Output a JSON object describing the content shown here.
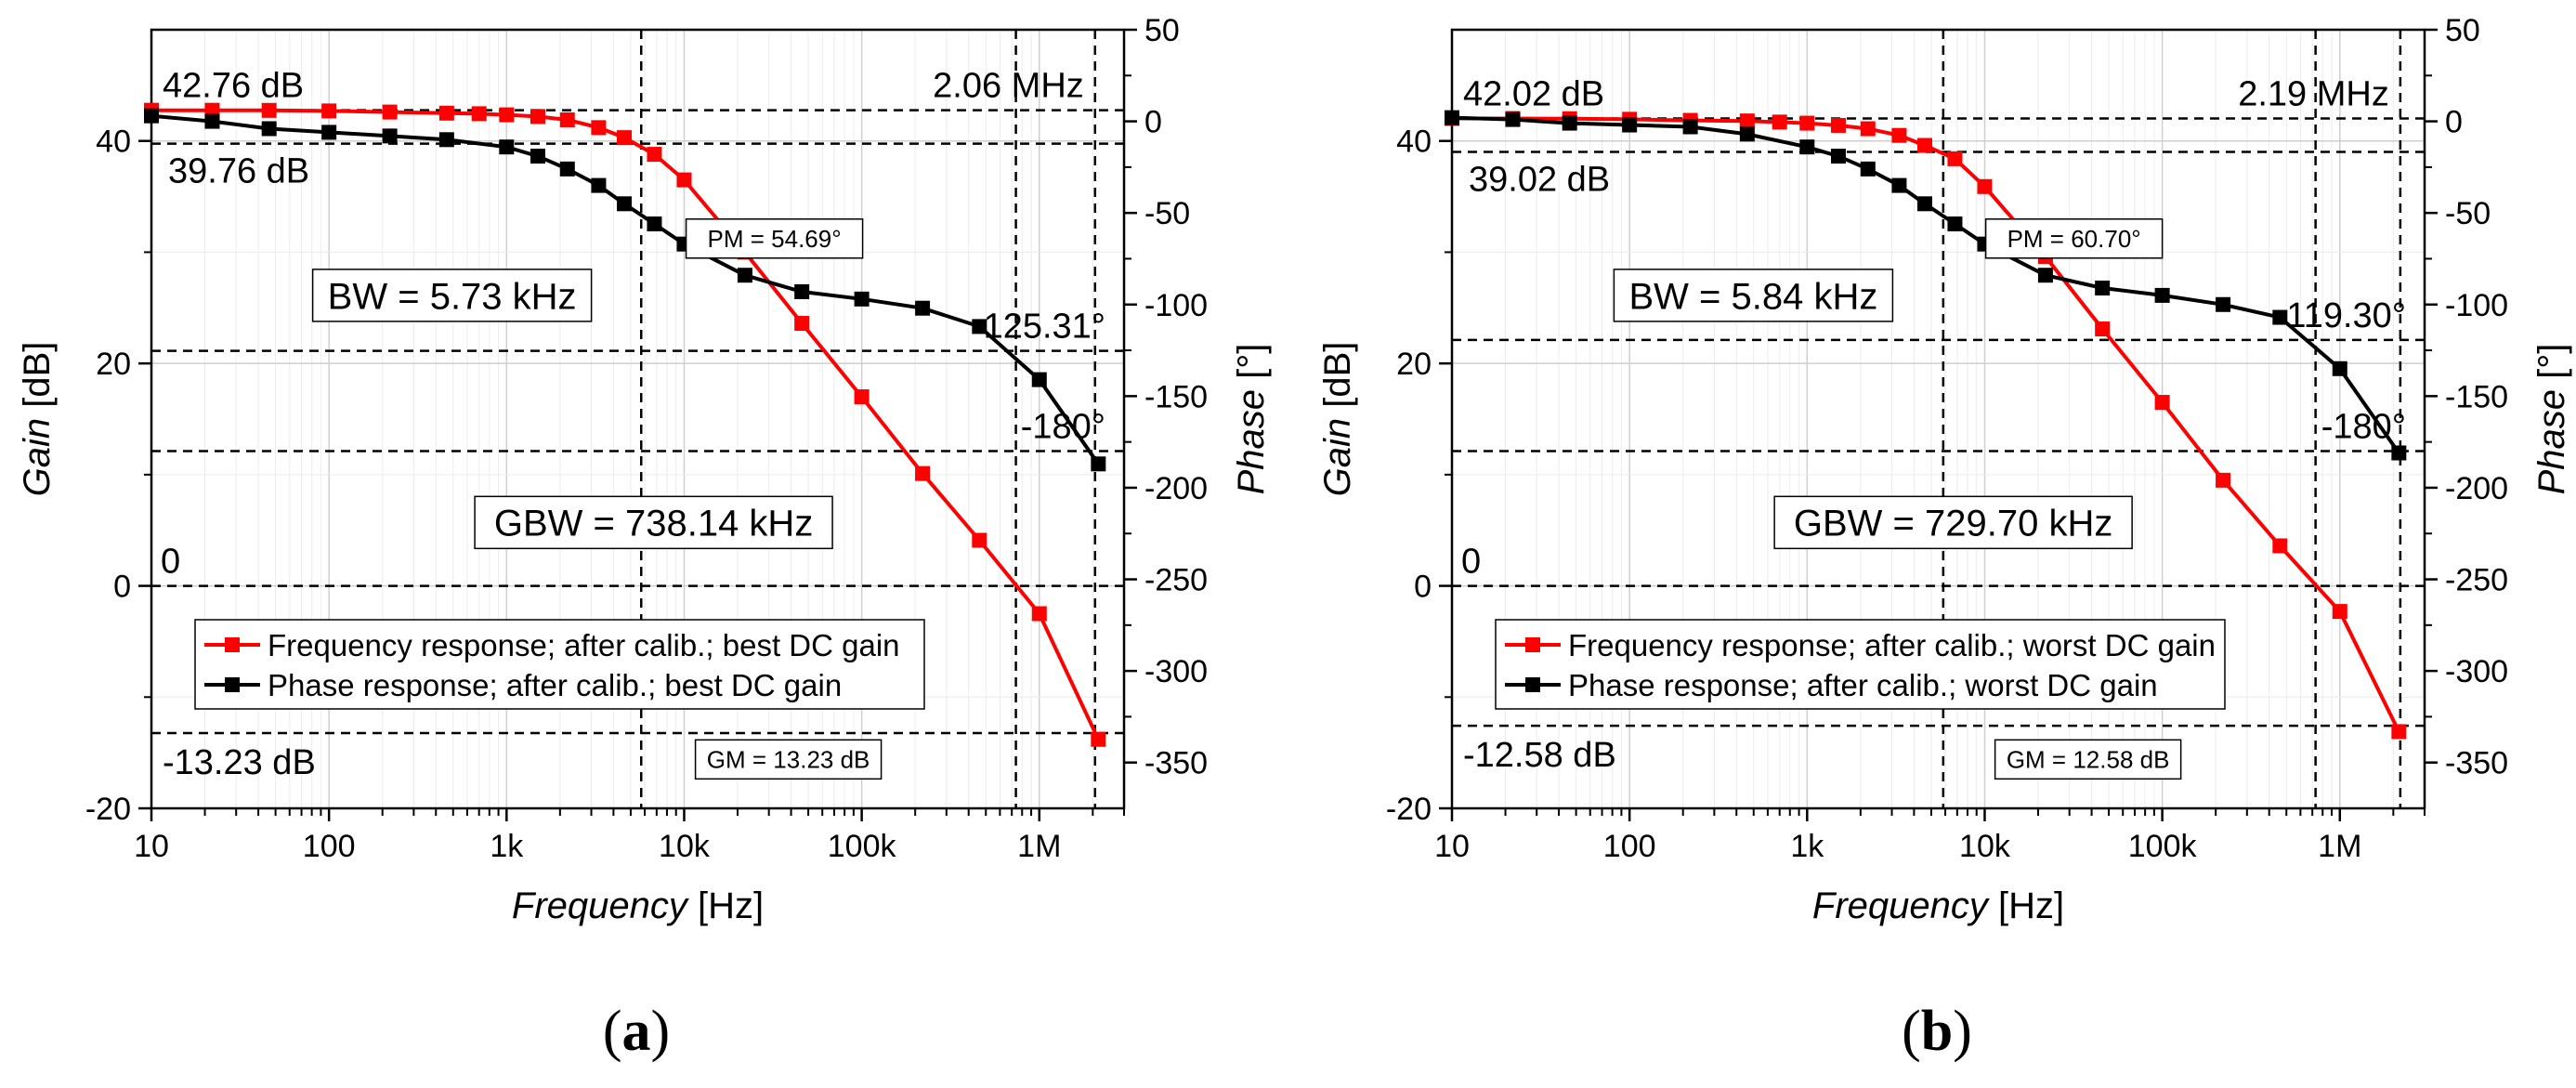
{
  "chart_data": [
    {
      "type": "line",
      "panel_label": "a",
      "xlabel_italic": "Frequency",
      "xlabel_unit": " [Hz]",
      "ylabel_italic": "Gain",
      "ylabel_unit": " [dB]",
      "y2label_italic": "Phase",
      "y2label_unit": " [°]",
      "x_scale": "log",
      "xlim": [
        10,
        3000000
      ],
      "ylim": [
        -20,
        50
      ],
      "y2lim": [
        -375,
        50
      ],
      "x_ticks": [
        {
          "v": 10,
          "label": "10"
        },
        {
          "v": 100,
          "label": "100"
        },
        {
          "v": 1000,
          "label": "1k"
        },
        {
          "v": 10000,
          "label": "10k"
        },
        {
          "v": 100000,
          "label": "100k"
        },
        {
          "v": 1000000,
          "label": "1M"
        }
      ],
      "y_ticks": [
        {
          "v": -20,
          "label": "-20"
        },
        {
          "v": 0,
          "label": "0"
        },
        {
          "v": 20,
          "label": "20"
        },
        {
          "v": 40,
          "label": "40"
        }
      ],
      "y2_ticks": [
        {
          "v": 50,
          "label": "50"
        },
        {
          "v": 0,
          "label": "0"
        },
        {
          "v": -50,
          "label": "-50"
        },
        {
          "v": -100,
          "label": "-100"
        },
        {
          "v": -150,
          "label": "-150"
        },
        {
          "v": -200,
          "label": "-200"
        },
        {
          "v": -250,
          "label": "-250"
        },
        {
          "v": -300,
          "label": "-300"
        },
        {
          "v": -350,
          "label": "-350"
        }
      ],
      "grid": true,
      "legend_placement": "lower-left",
      "series": [
        {
          "name": "Frequency response; after calib.; best DC gain",
          "axis": "left",
          "color": "#ff0000",
          "x": [
            10,
            22,
            46,
            100,
            220,
            460,
            700,
            1000,
            1500,
            2200,
            3300,
            4600,
            6800,
            10000,
            22000,
            46000,
            100000,
            220000,
            460000,
            1000000,
            2150000
          ],
          "y": [
            42.76,
            42.76,
            42.75,
            42.7,
            42.6,
            42.5,
            42.45,
            42.35,
            42.2,
            41.9,
            41.2,
            40.3,
            38.8,
            36.5,
            30.0,
            23.6,
            17.0,
            10.1,
            4.1,
            -2.5,
            -13.8
          ]
        },
        {
          "name": "Phase response; after calib.; best DC gain",
          "axis": "right",
          "color": "#000000",
          "x": [
            10,
            22,
            46,
            100,
            220,
            460,
            1000,
            1500,
            2200,
            3300,
            4600,
            6800,
            10000,
            22000,
            46000,
            100000,
            220000,
            460000,
            1000000,
            2150000
          ],
          "y": [
            3,
            0,
            -4,
            -6,
            -8,
            -10,
            -14,
            -19,
            -26,
            -35,
            -45,
            -56,
            -67,
            -84,
            -93,
            -97,
            -102,
            -112,
            -141,
            -187
          ]
        }
      ],
      "annotations": {
        "dc_gain": "42.76 dB",
        "dc_gain_minus3": "39.76 dB",
        "zero": "0",
        "gm_level": "-13.23 dB",
        "unity_freq": "2.06 MHz",
        "phase_at_unity": "-125.31°",
        "minus180": "-180°",
        "bw": "BW = 5.73 kHz",
        "gbw": "GBW = 738.14 kHz",
        "pm": "PM = 54.69°",
        "gm": "GM = 13.23 dB"
      },
      "markers": {
        "h_gain": [
          42.76,
          39.76,
          -13.23
        ],
        "h_phase": [
          -125.31,
          -180
        ],
        "v_freq": [
          5730,
          738140,
          2060000
        ],
        "zero_line": 0
      }
    },
    {
      "type": "line",
      "panel_label": "b",
      "xlabel_italic": "Frequency",
      "xlabel_unit": " [Hz]",
      "ylabel_italic": "Gain",
      "ylabel_unit": " [dB]",
      "y2label_italic": "Phase",
      "y2label_unit": " [°]",
      "x_scale": "log",
      "xlim": [
        10,
        3000000
      ],
      "ylim": [
        -20,
        50
      ],
      "y2lim": [
        -375,
        50
      ],
      "x_ticks": [
        {
          "v": 10,
          "label": "10"
        },
        {
          "v": 100,
          "label": "100"
        },
        {
          "v": 1000,
          "label": "1k"
        },
        {
          "v": 10000,
          "label": "10k"
        },
        {
          "v": 100000,
          "label": "100k"
        },
        {
          "v": 1000000,
          "label": "1M"
        }
      ],
      "y_ticks": [
        {
          "v": -20,
          "label": "-20"
        },
        {
          "v": 0,
          "label": "0"
        },
        {
          "v": 20,
          "label": "20"
        },
        {
          "v": 40,
          "label": "40"
        }
      ],
      "y2_ticks": [
        {
          "v": 50,
          "label": "50"
        },
        {
          "v": 0,
          "label": "0"
        },
        {
          "v": -50,
          "label": "-50"
        },
        {
          "v": -100,
          "label": "-100"
        },
        {
          "v": -150,
          "label": "-150"
        },
        {
          "v": -200,
          "label": "-200"
        },
        {
          "v": -250,
          "label": "-250"
        },
        {
          "v": -300,
          "label": "-300"
        },
        {
          "v": -350,
          "label": "-350"
        }
      ],
      "grid": true,
      "legend_placement": "lower-left",
      "series": [
        {
          "name": "Frequency response; after calib.; worst DC gain",
          "axis": "left",
          "color": "#ff0000",
          "x": [
            10,
            22,
            46,
            100,
            220,
            460,
            700,
            1000,
            1500,
            2200,
            3300,
            4600,
            6800,
            10000,
            22000,
            46000,
            100000,
            220000,
            460000,
            1000000,
            2150000
          ],
          "y": [
            42.02,
            42.02,
            42.0,
            41.95,
            41.85,
            41.8,
            41.7,
            41.6,
            41.4,
            41.1,
            40.5,
            39.6,
            38.4,
            35.9,
            29.6,
            23.1,
            16.5,
            9.5,
            3.6,
            -2.3,
            -13.1
          ]
        },
        {
          "name": "Phase response; after calib.; worst DC gain",
          "axis": "right",
          "color": "#000000",
          "x": [
            10,
            22,
            46,
            100,
            220,
            460,
            1000,
            1500,
            2200,
            3300,
            4600,
            6800,
            10000,
            22000,
            46000,
            100000,
            220000,
            460000,
            1000000,
            2150000
          ],
          "y": [
            2,
            1,
            -1,
            -2,
            -3,
            -7,
            -14,
            -19,
            -26,
            -35,
            -45,
            -56,
            -67,
            -84,
            -91,
            -95,
            -100,
            -107,
            -135,
            -181
          ]
        }
      ],
      "annotations": {
        "dc_gain": "42.02 dB",
        "dc_gain_minus3": "39.02 dB",
        "zero": "0",
        "gm_level": "-12.58 dB",
        "unity_freq": "2.19 MHz",
        "phase_at_unity": "-119.30°",
        "minus180": "-180°",
        "bw": "BW = 5.84 kHz",
        "gbw": "GBW = 729.70 kHz",
        "pm": "PM = 60.70°",
        "gm": "GM = 12.58 dB"
      },
      "markers": {
        "h_gain": [
          42.02,
          39.02,
          -12.58
        ],
        "h_phase": [
          -119.3,
          -180
        ],
        "v_freq": [
          5840,
          729700,
          2190000
        ],
        "zero_line": 0
      }
    }
  ]
}
